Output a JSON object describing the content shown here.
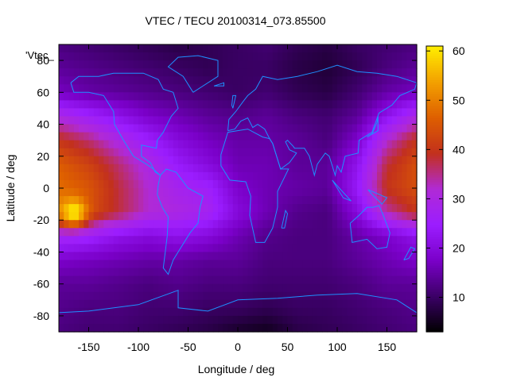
{
  "chart_data": {
    "type": "heatmap",
    "title": "VTEC / TECU 20100314_073.85500",
    "xlabel": "Longitude / deg",
    "ylabel": "Latitude / deg",
    "key_label": "'Vtec_",
    "xlim": [
      -180,
      180
    ],
    "ylim": [
      -90,
      90
    ],
    "x_ticks": [
      -150,
      -100,
      -50,
      0,
      50,
      100,
      150
    ],
    "y_ticks": [
      -80,
      -60,
      -40,
      -20,
      0,
      20,
      40,
      60,
      80
    ],
    "colorbar": {
      "range": [
        3,
        61
      ],
      "ticks": [
        10,
        20,
        30,
        40,
        50,
        60
      ],
      "palette": [
        "#000000",
        "#3b0066",
        "#7a00c8",
        "#9b1dff",
        "#b02ad6",
        "#c2301d",
        "#de5f00",
        "#f3a000",
        "#ffee00"
      ]
    },
    "grid": false,
    "value_grid": {
      "description": "Vertical TEC in TECU sampled on a coarse latitude/longitude grid",
      "lon": [
        -180,
        -150,
        -120,
        -90,
        -60,
        -30,
        0,
        30,
        60,
        90,
        120,
        150,
        180
      ],
      "lat": [
        90,
        75,
        60,
        45,
        30,
        15,
        0,
        -15,
        -30,
        -45,
        -60,
        -75,
        -90
      ],
      "values": [
        [
          12,
          11,
          10,
          9,
          8,
          9,
          10,
          11,
          9,
          8,
          10,
          11,
          12
        ],
        [
          14,
          13,
          12,
          11,
          10,
          9,
          10,
          10,
          8,
          7,
          9,
          12,
          14
        ],
        [
          17,
          15,
          14,
          13,
          12,
          11,
          10,
          11,
          9,
          8,
          11,
          15,
          17
        ],
        [
          30,
          26,
          22,
          18,
          16,
          14,
          13,
          14,
          12,
          11,
          14,
          22,
          30
        ],
        [
          40,
          36,
          30,
          25,
          20,
          17,
          15,
          15,
          14,
          12,
          18,
          32,
          40
        ],
        [
          46,
          42,
          36,
          30,
          24,
          20,
          16,
          16,
          14,
          14,
          22,
          38,
          44
        ],
        [
          48,
          45,
          38,
          32,
          28,
          26,
          18,
          16,
          15,
          14,
          24,
          40,
          44
        ],
        [
          50,
          44,
          38,
          32,
          30,
          28,
          20,
          16,
          13,
          12,
          20,
          34,
          40
        ],
        [
          28,
          26,
          22,
          20,
          22,
          20,
          16,
          13,
          12,
          12,
          15,
          18,
          22
        ],
        [
          18,
          17,
          16,
          15,
          15,
          14,
          14,
          12,
          12,
          12,
          14,
          16,
          18
        ],
        [
          14,
          14,
          13,
          12,
          13,
          12,
          12,
          11,
          11,
          11,
          12,
          14,
          14
        ],
        [
          13,
          12,
          12,
          11,
          11,
          10,
          10,
          9,
          10,
          10,
          11,
          12,
          13
        ],
        [
          12,
          11,
          11,
          10,
          9,
          8,
          6,
          5,
          8,
          9,
          10,
          11,
          12
        ]
      ],
      "hotspot": {
        "lon": -165,
        "lat": -15,
        "value": 61
      }
    },
    "overlay": "coastlines",
    "overlay_color": "#1e90ff"
  }
}
